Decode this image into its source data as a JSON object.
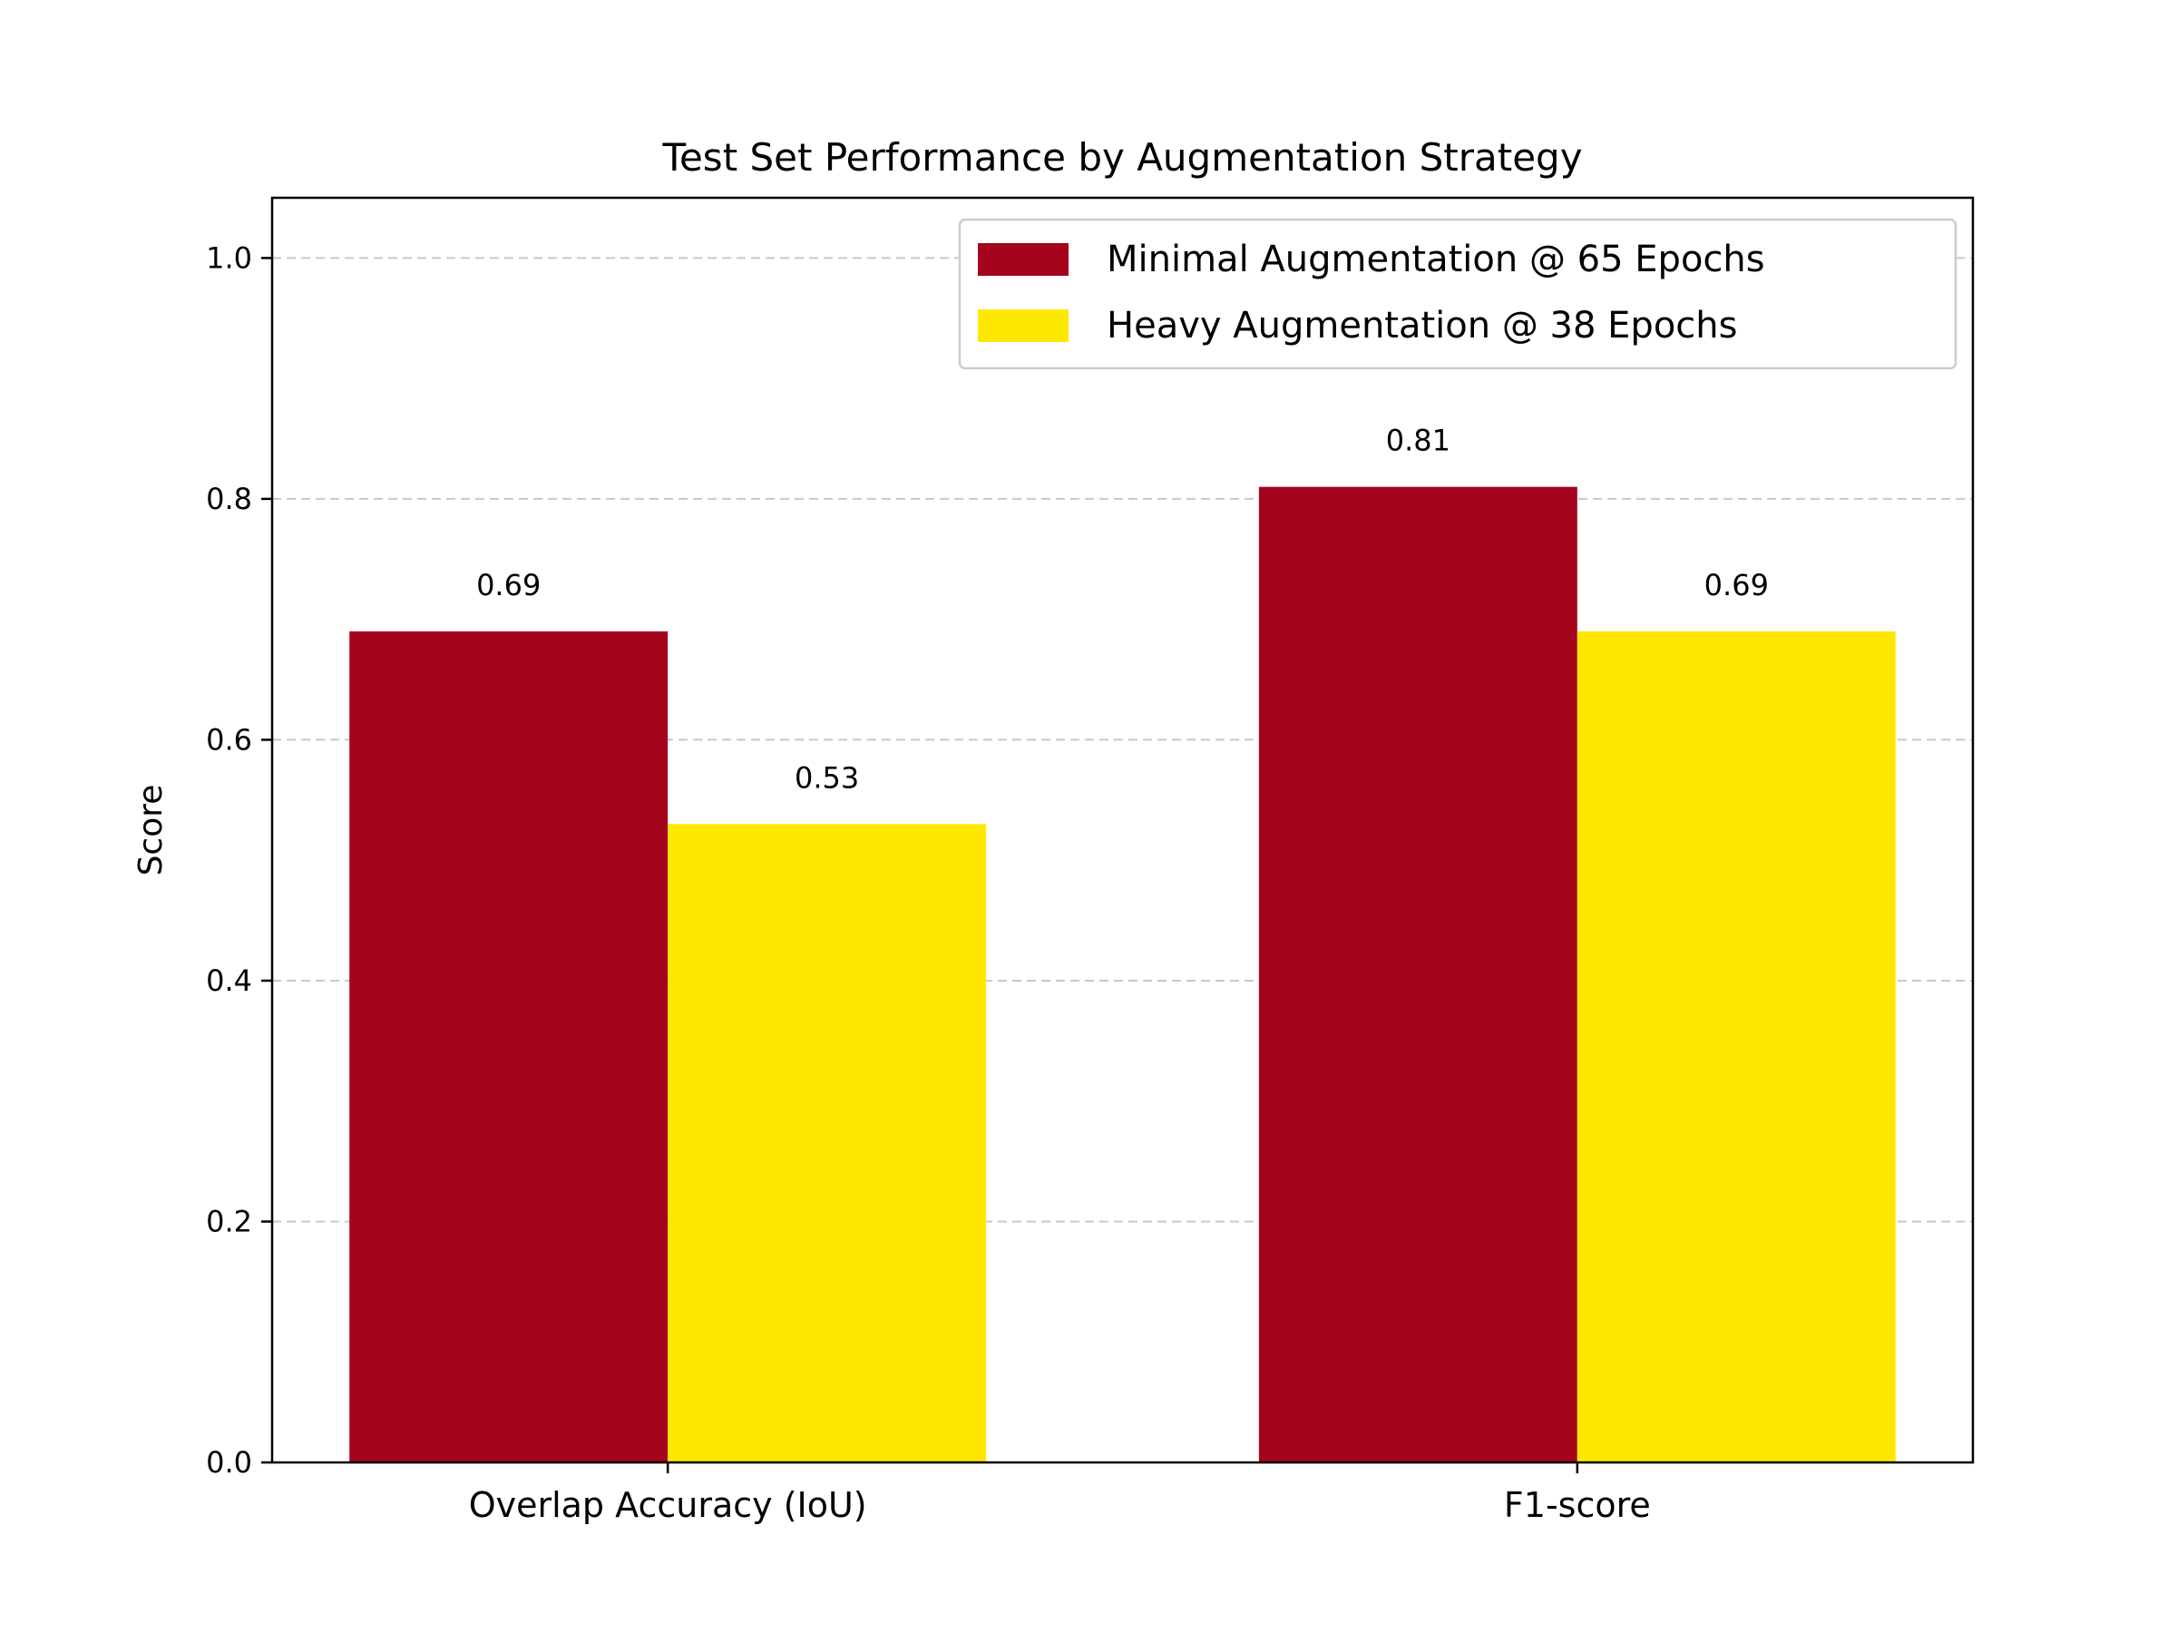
{
  "chart_data": {
    "type": "bar",
    "title": "Test Set Performance by Augmentation Strategy",
    "xlabel": "",
    "ylabel": "Score",
    "categories": [
      "Overlap Accuracy (IoU)",
      "F1-score"
    ],
    "series": [
      {
        "name": "Minimal Augmentation @ 65 Epochs",
        "values": [
          0.69,
          0.81
        ],
        "color": "#a5051c",
        "value_labels": [
          "0.69",
          "0.81"
        ]
      },
      {
        "name": "Heavy Augmentation @ 38 Epochs",
        "values": [
          0.53,
          0.69
        ],
        "color": "#ffe800",
        "value_labels": [
          "0.53",
          "0.69"
        ]
      }
    ],
    "ylim": [
      0,
      1.05
    ],
    "yticks": [
      0.0,
      0.2,
      0.4,
      0.6,
      0.8,
      1.0
    ],
    "ytick_labels": [
      "0.0",
      "0.2",
      "0.4",
      "0.6",
      "0.8",
      "1.0"
    ],
    "grid": "y-dashed",
    "legend": "top-right"
  }
}
